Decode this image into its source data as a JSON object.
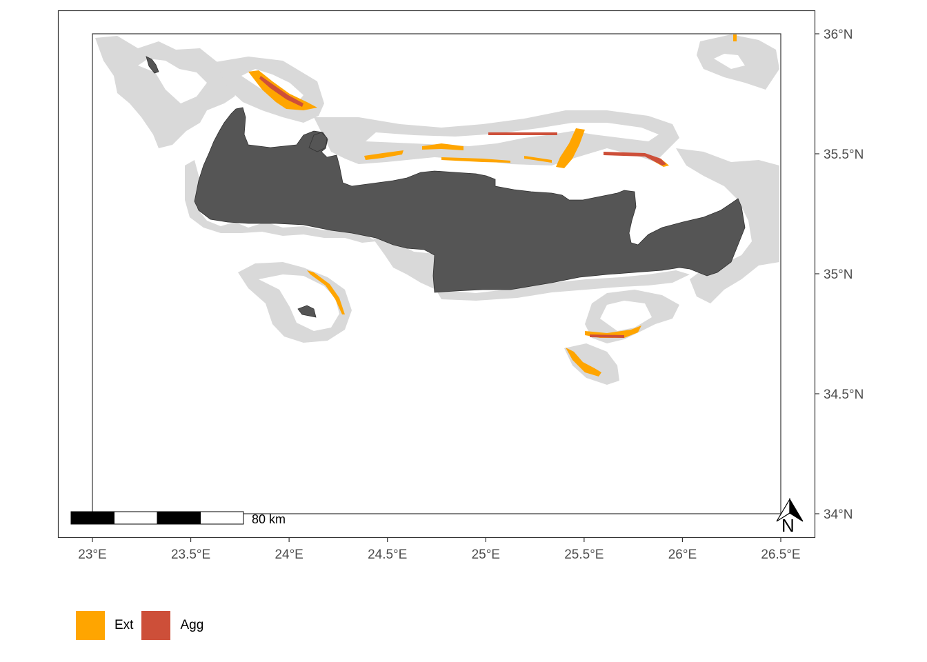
{
  "map": {
    "x_axis": {
      "unit": "longitude",
      "ticks": [
        {
          "value": 23.0,
          "label": "23°E"
        },
        {
          "value": 23.5,
          "label": "23.5°E"
        },
        {
          "value": 24.0,
          "label": "24°E"
        },
        {
          "value": 24.5,
          "label": "24.5°E"
        },
        {
          "value": 25.0,
          "label": "25°E"
        },
        {
          "value": 25.5,
          "label": "25.5°E"
        },
        {
          "value": 26.0,
          "label": "26°E"
        },
        {
          "value": 26.5,
          "label": "26.5°E"
        }
      ]
    },
    "y_axis": {
      "unit": "latitude",
      "position": "right",
      "ticks": [
        {
          "value": 36.0,
          "label": "36°N"
        },
        {
          "value": 35.5,
          "label": "35.5°N"
        },
        {
          "value": 35.0,
          "label": "35°N"
        },
        {
          "value": 34.5,
          "label": "34.5°N"
        },
        {
          "value": 34.0,
          "label": "34°N"
        }
      ]
    },
    "extent": {
      "lon": [
        22.83,
        26.68
      ],
      "lat": [
        33.9,
        36.1
      ]
    },
    "study_box": {
      "lon": [
        23.0,
        26.5
      ],
      "lat": [
        34.0,
        36.0
      ]
    },
    "scale_bar": {
      "label": "80 km",
      "segments": 4
    },
    "north_arrow": {
      "label": "N"
    },
    "colors": {
      "land": "#555555",
      "suitable_area": "#d9d9d9",
      "Ext": "#FFA500",
      "Agg": "#CD4F39"
    },
    "legend": {
      "position": "bottom-left",
      "items": [
        {
          "label": "Ext",
          "color": "#FFA500"
        },
        {
          "label": "Agg",
          "color": "#CD4F39"
        }
      ]
    }
  }
}
